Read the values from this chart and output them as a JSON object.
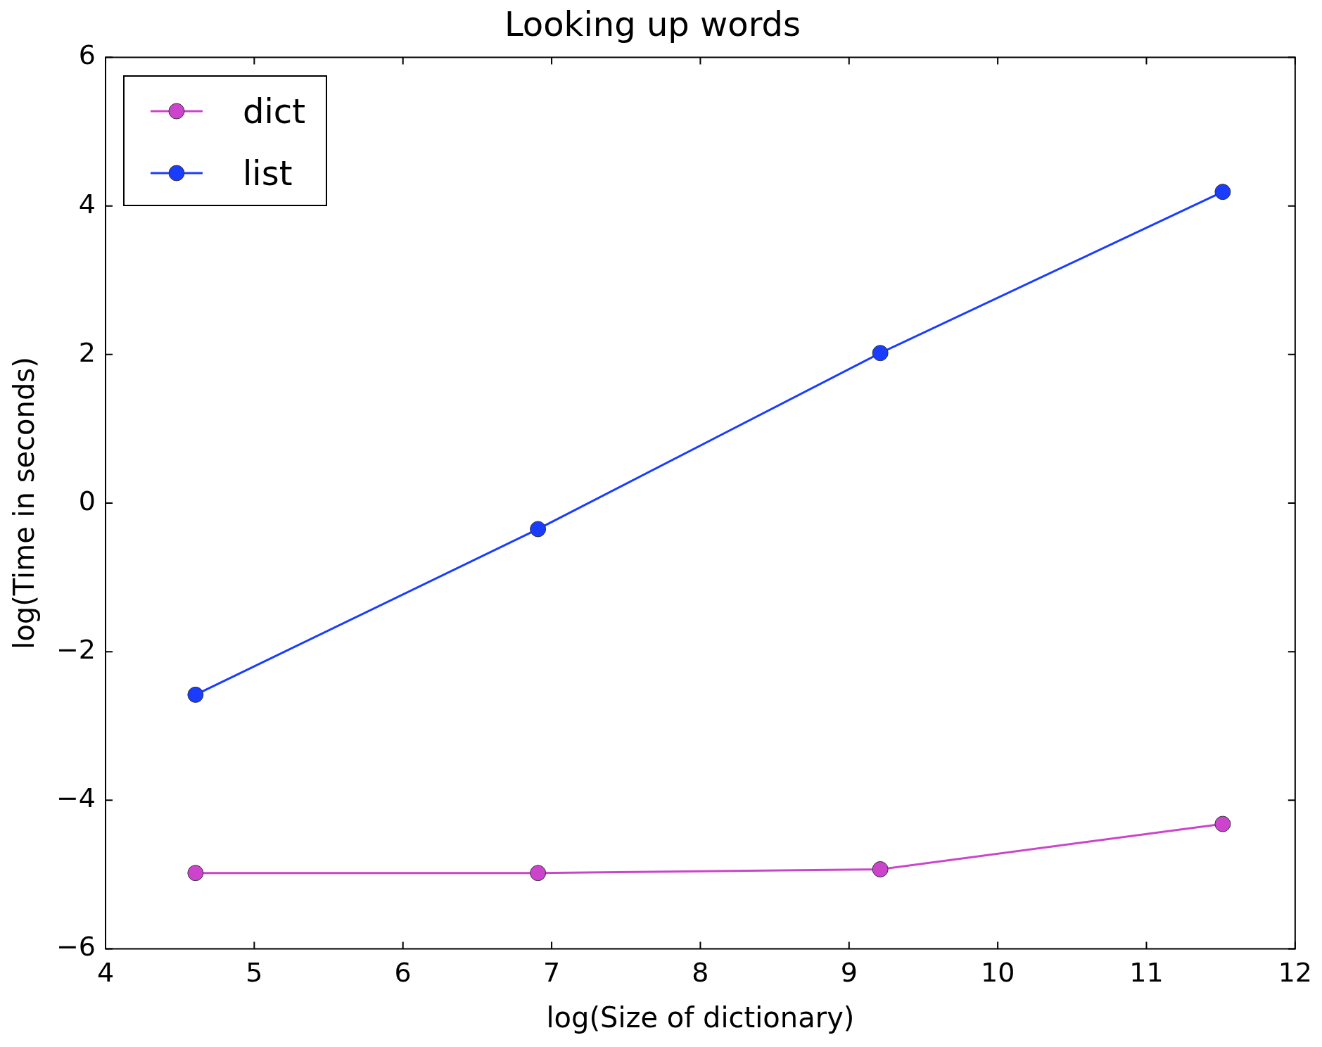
{
  "chart_data": {
    "type": "line",
    "title": "Looking up words",
    "xlabel": "log(Size of dictionary)",
    "ylabel": "log(Time in seconds)",
    "x": [
      4.605,
      6.908,
      9.21,
      11.513
    ],
    "series": [
      {
        "name": "dict",
        "color": "#cc44cc",
        "values": [
          -4.98,
          -4.98,
          -4.93,
          -4.32
        ]
      },
      {
        "name": "list",
        "color": "#1a3cff",
        "values": [
          -2.58,
          -0.35,
          2.02,
          4.19
        ]
      }
    ],
    "xlim": [
      4,
      12
    ],
    "xticks": [
      4,
      5,
      6,
      7,
      8,
      9,
      10,
      11,
      12
    ],
    "ylim": [
      -6,
      6
    ],
    "yticks": [
      -6,
      -4,
      -2,
      0,
      2,
      4,
      6
    ],
    "grid": false,
    "legend": "top left",
    "marker": "circle",
    "line_style": "solid"
  }
}
